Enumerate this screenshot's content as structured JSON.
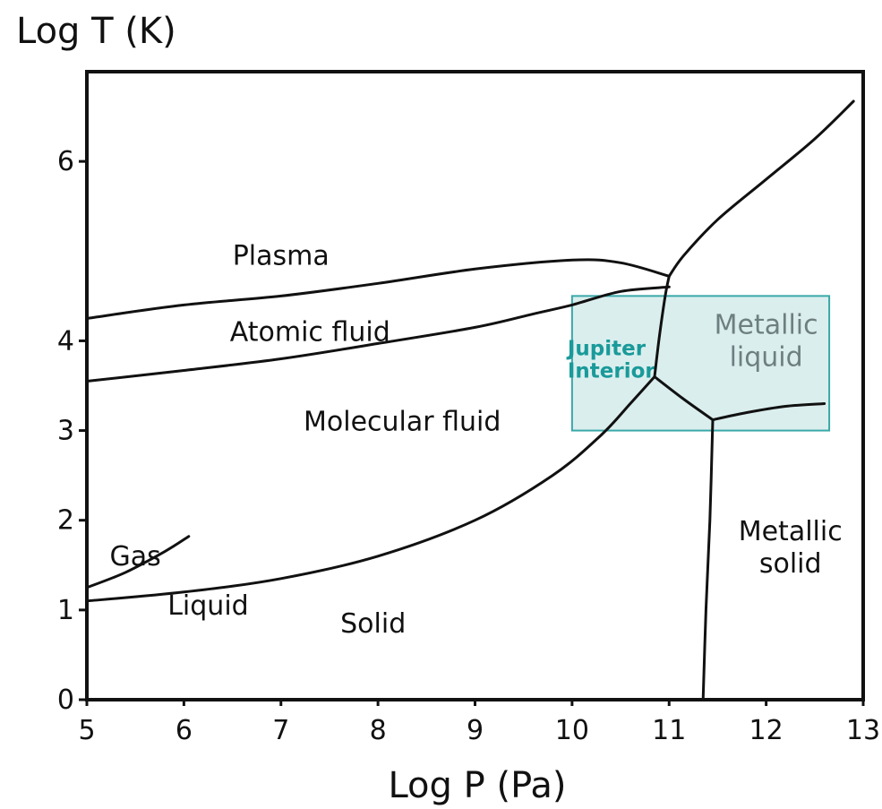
{
  "chart_data": {
    "type": "phase-diagram",
    "title": "",
    "xlabel": "Log P (Pa)",
    "ylabel": "Log T (K)",
    "xlim": [
      5,
      13
    ],
    "ylim": [
      0,
      7
    ],
    "grid": false,
    "legend": "none",
    "x_ticks": [
      5,
      6,
      7,
      8,
      9,
      10,
      11,
      12,
      13
    ],
    "y_ticks": [
      0,
      1,
      2,
      3,
      4,
      6
    ],
    "x_tick_labels": [
      "5",
      "6",
      "7",
      "8",
      "9",
      "10",
      "11",
      "12",
      "13"
    ],
    "y_tick_labels": [
      "0",
      "1",
      "2",
      "3",
      "4",
      "6"
    ],
    "regions": [
      {
        "label": "Plasma",
        "x": 7.0,
        "y": 4.95
      },
      {
        "label": "Atomic fluid",
        "x": 7.3,
        "y": 4.1
      },
      {
        "label": "Molecular fluid",
        "x": 8.25,
        "y": 3.1
      },
      {
        "label": "Gas",
        "x": 5.5,
        "y": 1.6
      },
      {
        "label": "Liquid",
        "x": 6.25,
        "y": 1.05
      },
      {
        "label": "Solid",
        "x": 7.95,
        "y": 0.85
      },
      {
        "label": "Metallic liquid",
        "x": 12.0,
        "y": 4.0
      },
      {
        "label": "Metallic solid",
        "x": 12.25,
        "y": 1.7
      }
    ],
    "boundaries": [
      {
        "name": "plasma-atomic",
        "points": [
          [
            5.0,
            4.25
          ],
          [
            6.0,
            4.4
          ],
          [
            7.0,
            4.5
          ],
          [
            8.0,
            4.64
          ],
          [
            9.0,
            4.8
          ],
          [
            10.0,
            4.9
          ],
          [
            10.5,
            4.87
          ],
          [
            11.0,
            4.72
          ]
        ]
      },
      {
        "name": "plasma-metallic",
        "points": [
          [
            11.0,
            4.72
          ],
          [
            11.15,
            4.95
          ],
          [
            11.5,
            5.35
          ],
          [
            12.0,
            5.8
          ],
          [
            12.5,
            6.25
          ],
          [
            12.9,
            6.67
          ]
        ]
      },
      {
        "name": "atomic-molecular",
        "points": [
          [
            5.0,
            3.55
          ],
          [
            6.0,
            3.67
          ],
          [
            7.0,
            3.8
          ],
          [
            8.0,
            3.97
          ],
          [
            9.0,
            4.15
          ],
          [
            9.6,
            4.3
          ],
          [
            10.0,
            4.4
          ],
          [
            10.5,
            4.55
          ],
          [
            11.0,
            4.6
          ]
        ]
      },
      {
        "name": "molecular-metallic",
        "points": [
          [
            11.0,
            4.72
          ],
          [
            10.96,
            4.5
          ],
          [
            10.9,
            4.05
          ],
          [
            10.85,
            3.6
          ]
        ]
      },
      {
        "name": "molecular-solid",
        "points": [
          [
            5.0,
            1.1
          ],
          [
            6.0,
            1.2
          ],
          [
            7.0,
            1.35
          ],
          [
            8.0,
            1.6
          ],
          [
            9.0,
            2.0
          ],
          [
            9.8,
            2.5
          ],
          [
            10.3,
            2.95
          ],
          [
            10.6,
            3.3
          ],
          [
            10.85,
            3.6
          ]
        ]
      },
      {
        "name": "metallic-triple",
        "points": [
          [
            10.85,
            3.6
          ],
          [
            11.15,
            3.35
          ],
          [
            11.45,
            3.12
          ]
        ]
      },
      {
        "name": "metallic-liquid-solid",
        "points": [
          [
            11.45,
            3.12
          ],
          [
            11.8,
            3.2
          ],
          [
            12.2,
            3.27
          ],
          [
            12.6,
            3.3
          ]
        ]
      },
      {
        "name": "metallic-solid-lower",
        "points": [
          [
            11.45,
            3.12
          ],
          [
            11.42,
            2.0
          ],
          [
            11.38,
            1.0
          ],
          [
            11.35,
            0.0
          ]
        ]
      },
      {
        "name": "gas-liquid",
        "points": [
          [
            5.0,
            1.25
          ],
          [
            5.4,
            1.42
          ],
          [
            5.8,
            1.65
          ],
          [
            6.05,
            1.82
          ]
        ]
      }
    ],
    "annotations": [
      {
        "label": "Jupiter Interior",
        "lines": [
          "Jupiter",
          "Interior"
        ],
        "x_range": [
          10.0,
          12.65
        ],
        "y_range": [
          3.0,
          4.5
        ],
        "color": "#3aa8a8",
        "fill": "#cfe8e8"
      }
    ]
  }
}
